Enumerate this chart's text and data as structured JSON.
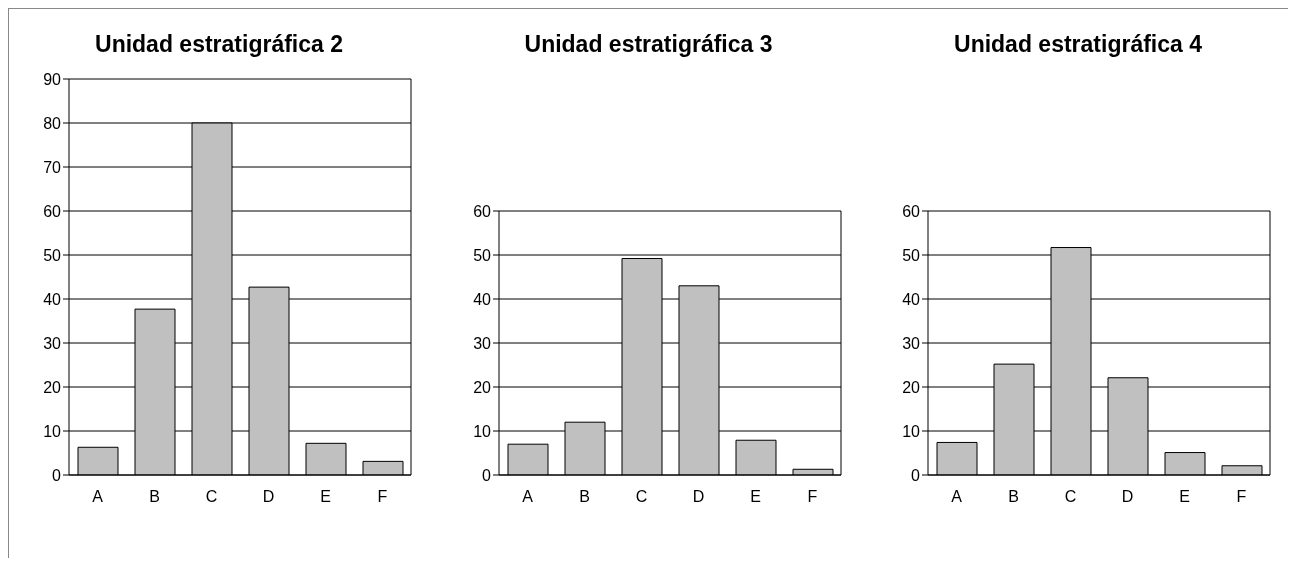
{
  "chart_data": [
    {
      "type": "bar",
      "title": "Unidad estratigráfica 2",
      "categories": [
        "A",
        "B",
        "C",
        "D",
        "E",
        "F"
      ],
      "values": [
        6.3,
        37.7,
        80,
        42.7,
        7.2,
        3.1
      ],
      "color": "#c0c0c0",
      "ylim": [
        0,
        90
      ],
      "yticks": [
        0,
        10,
        20,
        30,
        40,
        50,
        60,
        70,
        80,
        90
      ],
      "grid": "y"
    },
    {
      "type": "bar",
      "title": "Unidad estratigráfica 3",
      "categories": [
        "A",
        "B",
        "C",
        "D",
        "E",
        "F"
      ],
      "values": [
        7,
        12,
        49.2,
        43,
        7.9,
        1.3
      ],
      "color": "#c0c0c0",
      "ylim": [
        0,
        60
      ],
      "yticks": [
        0,
        10,
        20,
        30,
        40,
        50,
        60
      ],
      "grid": "y"
    },
    {
      "type": "bar",
      "title": "Unidad estratigráfica 4",
      "categories": [
        "A",
        "B",
        "C",
        "D",
        "E",
        "F"
      ],
      "values": [
        7.4,
        25.2,
        51.7,
        22.1,
        5.1,
        2.1
      ],
      "color": "#c0c0c0",
      "ylim": [
        0,
        60
      ],
      "yticks": [
        0,
        10,
        20,
        30,
        40,
        50,
        60
      ],
      "grid": "y"
    }
  ]
}
